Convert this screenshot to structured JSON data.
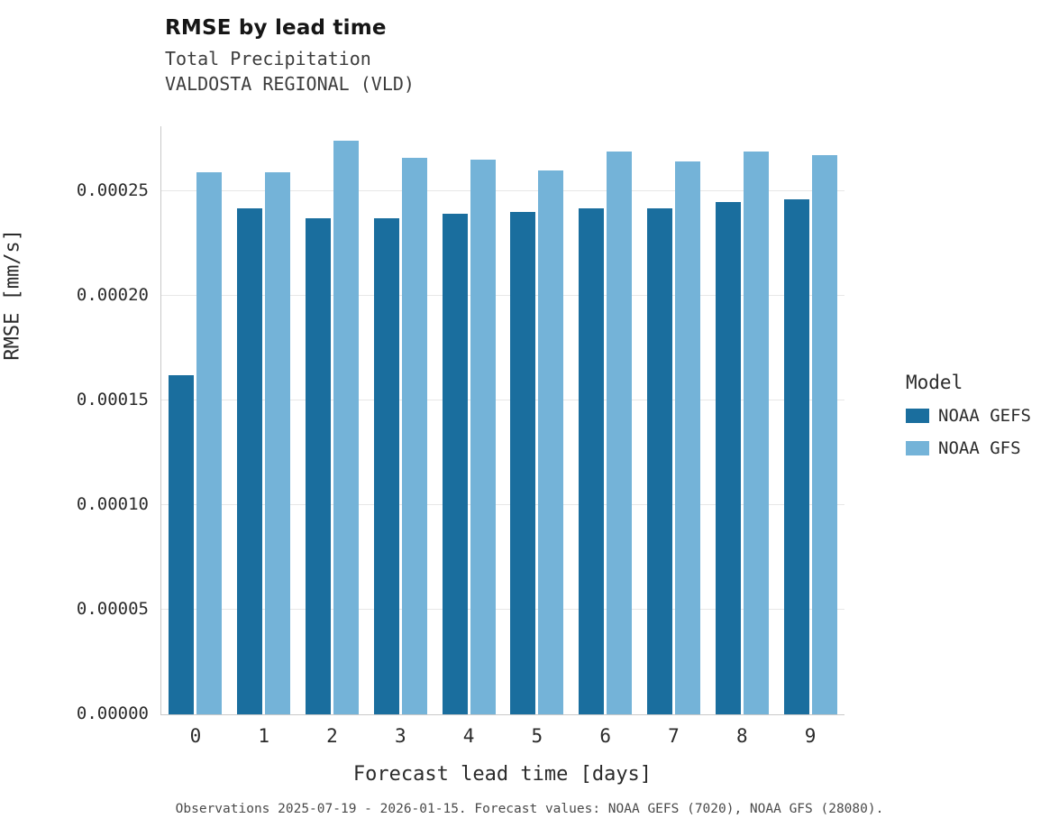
{
  "header": {
    "title": "RMSE by lead time",
    "subtitle_line1": "Total Precipitation",
    "subtitle_line2": "VALDOSTA REGIONAL (VLD)"
  },
  "chart_data": {
    "type": "bar",
    "title": "RMSE by lead time",
    "subtitle": "Total Precipitation — VALDOSTA REGIONAL (VLD)",
    "xlabel": "Forecast lead time [days]",
    "ylabel": "RMSE [mm/s]",
    "categories": [
      "0",
      "1",
      "2",
      "3",
      "4",
      "5",
      "6",
      "7",
      "8",
      "9"
    ],
    "series": [
      {
        "name": "NOAA GEFS",
        "color": "#1a6e9e",
        "values": [
          0.000162,
          0.000242,
          0.000237,
          0.000237,
          0.000239,
          0.00024,
          0.000242,
          0.000242,
          0.000245,
          0.000246
        ]
      },
      {
        "name": "NOAA GFS",
        "color": "#74b3d8",
        "values": [
          0.000259,
          0.000259,
          0.000274,
          0.000266,
          0.000265,
          0.00026,
          0.000269,
          0.000264,
          0.000269,
          0.000267
        ]
      }
    ],
    "ylim": [
      0,
      0.000281
    ],
    "yticks": [
      {
        "value": 0.0,
        "label": "0.00000"
      },
      {
        "value": 5e-05,
        "label": "0.00005"
      },
      {
        "value": 0.0001,
        "label": "0.00010"
      },
      {
        "value": 0.00015,
        "label": "0.00015"
      },
      {
        "value": 0.0002,
        "label": "0.00020"
      },
      {
        "value": 0.00025,
        "label": "0.00025"
      }
    ],
    "grid": true,
    "legend_title": "Model",
    "legend_position": "right"
  },
  "caption": "Observations 2025-07-19 - 2026-01-15. Forecast values: NOAA GEFS (7020), NOAA GFS (28080)."
}
